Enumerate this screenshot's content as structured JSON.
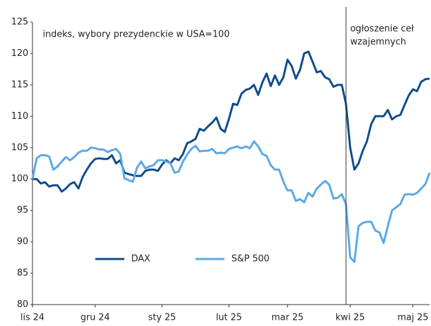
{
  "chart_data": {
    "type": "line",
    "subtitle": "indeks, wybory prezydenckie w USA=100",
    "categories": [
      "lis 24",
      null,
      null,
      null,
      null,
      null,
      null,
      null,
      null,
      null,
      null,
      null,
      null,
      null,
      null,
      "gru 24",
      null,
      null,
      null,
      null,
      null,
      null,
      null,
      null,
      null,
      null,
      null,
      null,
      null,
      null,
      null,
      "sty 25",
      null,
      null,
      null,
      null,
      null,
      null,
      null,
      null,
      null,
      null,
      null,
      null,
      null,
      null,
      null,
      "lut 25",
      null,
      null,
      null,
      null,
      null,
      null,
      null,
      null,
      null,
      null,
      null,
      null,
      null,
      "mar 25",
      null,
      null,
      null,
      null,
      null,
      null,
      null,
      null,
      null,
      null,
      null,
      null,
      null,
      null,
      "kwi 25",
      null,
      null,
      null,
      null,
      null,
      null,
      null,
      null,
      null,
      null,
      null,
      null,
      null,
      null,
      "maj 25",
      null,
      null,
      null,
      null
    ],
    "series": [
      {
        "name": "DAX",
        "color": "#0f4c8a",
        "values": [
          100,
          100,
          99.3,
          99.5,
          98.8,
          99,
          99,
          98,
          98.5,
          99.2,
          99.5,
          98.5,
          100.3,
          101.5,
          102.5,
          103.2,
          103.3,
          103.2,
          103.2,
          103.8,
          102.5,
          103,
          101,
          100.8,
          100.6,
          100.5,
          100.5,
          101.3,
          101.5,
          101.5,
          101.3,
          102.3,
          103,
          102.5,
          103.3,
          103,
          104,
          105.7,
          106,
          106.4,
          108,
          107.7,
          108.4,
          109,
          109.8,
          108,
          107.5,
          109.6,
          112,
          111.8,
          113.6,
          114.2,
          114.4,
          115,
          113.4,
          115.4,
          116.8,
          114.8,
          116.5,
          115,
          116.2,
          119,
          118,
          116,
          117.4,
          120,
          120.3,
          118.7,
          117,
          117.2,
          116.2,
          115.9,
          114.7,
          115,
          115,
          112,
          105,
          101.5,
          102.5,
          104.5,
          106,
          108.7,
          110,
          110,
          110,
          111,
          109.5,
          110,
          110.2,
          111.8,
          113.3,
          114.3,
          114,
          115.5,
          115.9,
          116
        ]
      },
      {
        "name": "S&P 500",
        "color": "#5aa9e6",
        "values": [
          100,
          103.3,
          103.8,
          103.8,
          103.6,
          101.5,
          102,
          102.8,
          103.5,
          103,
          103.5,
          104.2,
          104.5,
          104.5,
          105,
          104.9,
          104.7,
          104.7,
          104.3,
          104.6,
          104.8,
          104,
          100.1,
          99.8,
          99.6,
          101.8,
          102.8,
          101.7,
          102,
          102.2,
          103,
          103,
          102.8,
          102.5,
          101,
          101.2,
          102.8,
          103.9,
          104.8,
          105.3,
          104.4,
          104.5,
          104.5,
          104.8,
          104.1,
          104.2,
          104.1,
          104.8,
          105,
          105.2,
          104.9,
          105.2,
          104.9,
          106,
          105.2,
          104,
          103.7,
          102.2,
          101.5,
          101.5,
          99.6,
          98.2,
          98.2,
          96.5,
          96.8,
          96.3,
          97.8,
          97.2,
          98.5,
          99.1,
          99.7,
          99.1,
          96.9,
          97,
          97.6,
          96,
          87.5,
          86.8,
          92.5,
          93,
          93.2,
          93.2,
          91.8,
          91.5,
          89.8,
          92.5,
          95,
          95.5,
          96,
          97.5,
          97.6,
          97.5,
          97.8,
          98.5,
          99.2,
          101
        ]
      }
    ],
    "annotation": {
      "text": [
        "ogłoszenie ceł",
        "wzajemnych"
      ],
      "at": 75
    },
    "ylim": [
      80,
      125
    ],
    "yticks": [
      80,
      85,
      90,
      95,
      100,
      105,
      110,
      115,
      120,
      125
    ]
  }
}
